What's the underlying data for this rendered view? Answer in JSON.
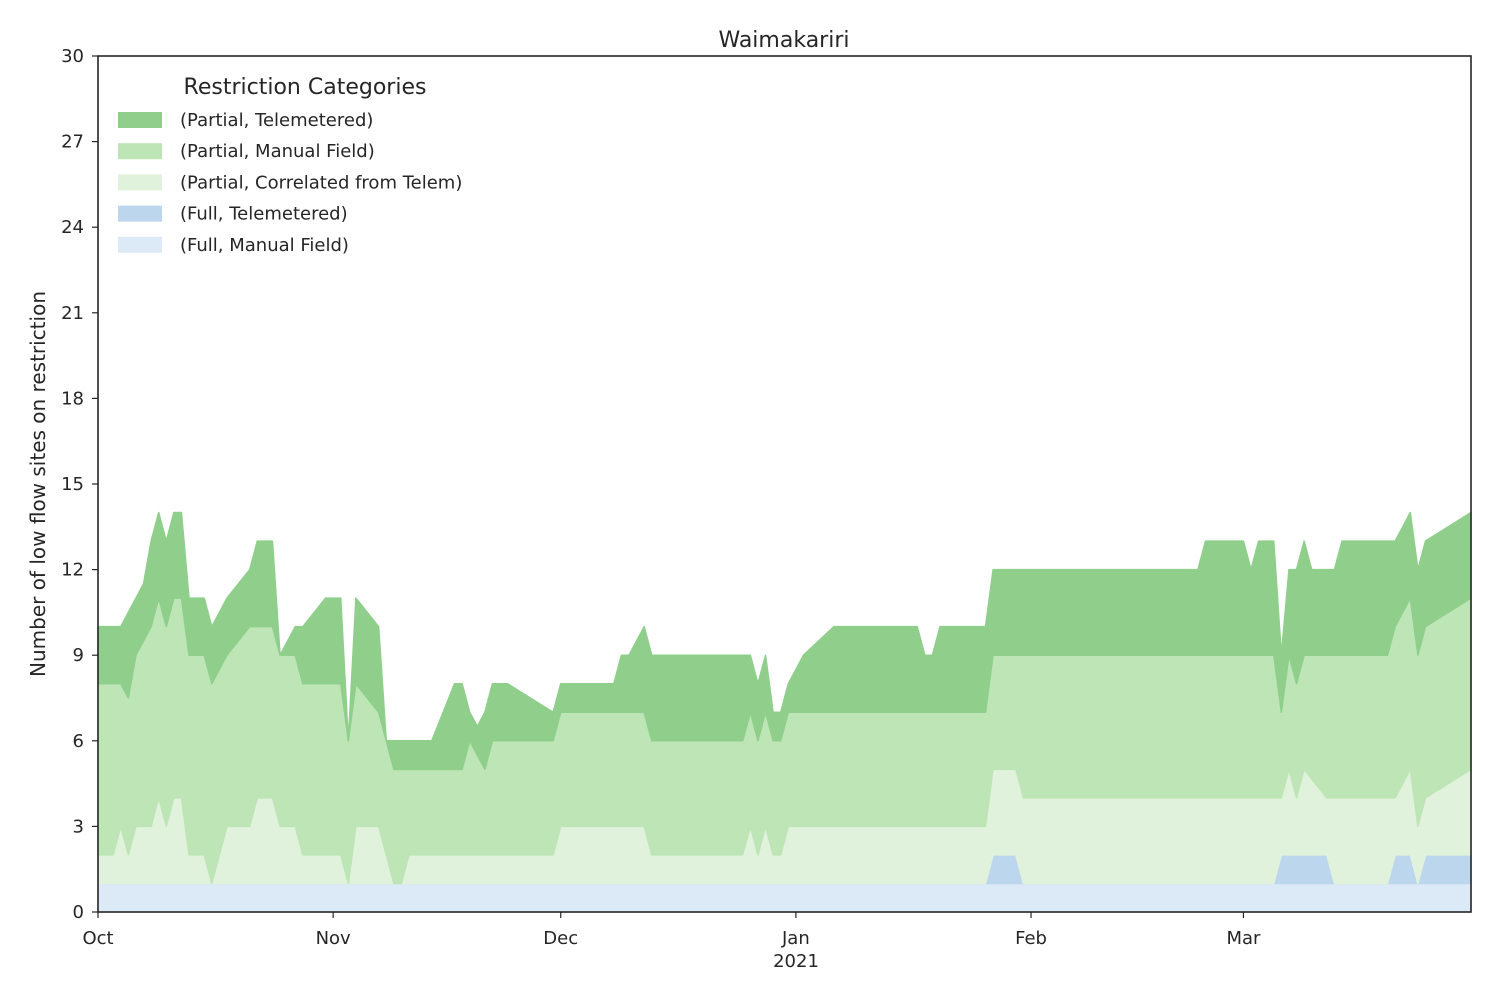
{
  "chart_data": {
    "type": "area",
    "stacked": true,
    "title": "Waimakariri",
    "xlabel": "",
    "ylabel": "Number of low flow sites on restriction",
    "ylim": [
      0,
      30
    ],
    "yticks": [
      0,
      3,
      6,
      9,
      12,
      15,
      18,
      21,
      24,
      27,
      30
    ],
    "xlim": [
      "2020-10-01",
      "2021-03-31"
    ],
    "xticks": [
      {
        "label": "Oct",
        "date": "2020-10-01"
      },
      {
        "label": "Nov",
        "date": "2020-11-01"
      },
      {
        "label": "Dec",
        "date": "2020-12-01"
      },
      {
        "label": "Jan",
        "date": "2021-01-01"
      },
      {
        "label": "Feb",
        "date": "2021-02-01"
      },
      {
        "label": "Mar",
        "date": "2021-03-01"
      }
    ],
    "year_label": "2021",
    "grid": false,
    "legend": {
      "title": "Restriction Categories",
      "placement": "top-left"
    },
    "series": [
      {
        "name": "(Full, Manual Field)",
        "color": "#dce9f6",
        "points": [
          [
            "2020-10-01",
            1
          ],
          [
            "2021-03-31",
            1
          ]
        ]
      },
      {
        "name": "(Full, Telemetered)",
        "color": "#bcd7ed",
        "points": [
          [
            "2020-10-01",
            0
          ],
          [
            "2021-01-26",
            0
          ],
          [
            "2021-01-27",
            1
          ],
          [
            "2021-01-30",
            1
          ],
          [
            "2021-01-31",
            0
          ],
          [
            "2021-03-05",
            0
          ],
          [
            "2021-03-06",
            1
          ],
          [
            "2021-03-12",
            1
          ],
          [
            "2021-03-13",
            0
          ],
          [
            "2021-03-20",
            0
          ],
          [
            "2021-03-21",
            1
          ],
          [
            "2021-03-23",
            1
          ],
          [
            "2021-03-24",
            0
          ],
          [
            "2021-03-25",
            1
          ],
          [
            "2021-03-31",
            1
          ]
        ]
      },
      {
        "name": "(Partial, Correlated from Telem)",
        "color": "#e1f2dc",
        "points": [
          [
            "2020-10-01",
            1
          ],
          [
            "2020-10-03",
            1
          ],
          [
            "2020-10-04",
            2
          ],
          [
            "2020-10-05",
            1
          ],
          [
            "2020-10-06",
            2
          ],
          [
            "2020-10-08",
            2
          ],
          [
            "2020-10-09",
            3
          ],
          [
            "2020-10-10",
            2
          ],
          [
            "2020-10-11",
            3
          ],
          [
            "2020-10-12",
            3
          ],
          [
            "2020-10-13",
            1
          ],
          [
            "2020-10-15",
            1
          ],
          [
            "2020-10-16",
            0
          ],
          [
            "2020-10-18",
            2
          ],
          [
            "2020-10-21",
            2
          ],
          [
            "2020-10-22",
            3
          ],
          [
            "2020-10-24",
            3
          ],
          [
            "2020-10-25",
            2
          ],
          [
            "2020-10-27",
            2
          ],
          [
            "2020-10-28",
            1
          ],
          [
            "2020-11-02",
            1
          ],
          [
            "2020-11-03",
            0
          ],
          [
            "2020-11-04",
            2
          ],
          [
            "2020-11-07",
            2
          ],
          [
            "2020-11-09",
            0
          ],
          [
            "2020-11-10",
            0
          ],
          [
            "2020-11-11",
            1
          ],
          [
            "2020-11-30",
            1
          ],
          [
            "2020-12-01",
            2
          ],
          [
            "2020-12-12",
            2
          ],
          [
            "2020-12-13",
            1
          ],
          [
            "2020-12-25",
            1
          ],
          [
            "2020-12-26",
            2
          ],
          [
            "2020-12-27",
            1
          ],
          [
            "2020-12-28",
            2
          ],
          [
            "2020-12-29",
            1
          ],
          [
            "2020-12-30",
            1
          ],
          [
            "2020-12-31",
            2
          ],
          [
            "2021-01-26",
            2
          ],
          [
            "2021-01-27",
            3
          ],
          [
            "2021-01-30",
            3
          ],
          [
            "2021-01-31",
            3
          ],
          [
            "2021-03-05",
            3
          ],
          [
            "2021-03-06",
            2
          ],
          [
            "2021-03-07",
            3
          ],
          [
            "2021-03-08",
            2
          ],
          [
            "2021-03-09",
            3
          ],
          [
            "2021-03-12",
            2
          ],
          [
            "2021-03-13",
            3
          ],
          [
            "2021-03-20",
            3
          ],
          [
            "2021-03-21",
            2
          ],
          [
            "2021-03-23",
            3
          ],
          [
            "2021-03-24",
            2
          ],
          [
            "2021-03-25",
            2
          ],
          [
            "2021-03-31",
            3
          ]
        ]
      },
      {
        "name": "(Partial, Manual Field)",
        "color": "#bde5b5",
        "points": [
          [
            "2020-10-01",
            6
          ],
          [
            "2020-10-03",
            6
          ],
          [
            "2020-10-04",
            5
          ],
          [
            "2020-10-08",
            7
          ],
          [
            "2020-10-09",
            7
          ],
          [
            "2020-10-10",
            7
          ],
          [
            "2020-10-11",
            7
          ],
          [
            "2020-10-12",
            7
          ],
          [
            "2020-10-13",
            7
          ],
          [
            "2020-10-15",
            7
          ],
          [
            "2020-10-16",
            7
          ],
          [
            "2020-10-18",
            6
          ],
          [
            "2020-10-21",
            7
          ],
          [
            "2020-10-22",
            6
          ],
          [
            "2020-10-24",
            6
          ],
          [
            "2020-10-25",
            6
          ],
          [
            "2020-10-27",
            6
          ],
          [
            "2020-10-28",
            6
          ],
          [
            "2020-11-02",
            6
          ],
          [
            "2020-11-03",
            5
          ],
          [
            "2020-11-04",
            5
          ],
          [
            "2020-11-07",
            4
          ],
          [
            "2020-11-09",
            4
          ],
          [
            "2020-11-10",
            4
          ],
          [
            "2020-11-11",
            3
          ],
          [
            "2020-11-18",
            3
          ],
          [
            "2020-11-19",
            4
          ],
          [
            "2020-11-21",
            3
          ],
          [
            "2020-11-22",
            4
          ],
          [
            "2020-11-30",
            4
          ],
          [
            "2020-12-01",
            4
          ],
          [
            "2020-12-12",
            4
          ],
          [
            "2020-12-13",
            4
          ],
          [
            "2020-12-25",
            4
          ],
          [
            "2020-12-31",
            4
          ],
          [
            "2021-01-26",
            4
          ],
          [
            "2021-01-27",
            4
          ],
          [
            "2021-01-30",
            4
          ],
          [
            "2021-01-31",
            5
          ],
          [
            "2021-03-05",
            5
          ],
          [
            "2021-03-06",
            3
          ],
          [
            "2021-03-07",
            4
          ],
          [
            "2021-03-08",
            4
          ],
          [
            "2021-03-09",
            4
          ],
          [
            "2021-03-12",
            5
          ],
          [
            "2021-03-13",
            5
          ],
          [
            "2021-03-20",
            5
          ],
          [
            "2021-03-21",
            6
          ],
          [
            "2021-03-23",
            6
          ],
          [
            "2021-03-24",
            6
          ],
          [
            "2021-03-25",
            6
          ],
          [
            "2021-03-31",
            6
          ]
        ]
      },
      {
        "name": "(Partial, Telemetered)",
        "color": "#8fcf8b",
        "points": [
          [
            "2020-10-01",
            2
          ],
          [
            "2020-10-04",
            2
          ],
          [
            "2020-10-05",
            3
          ],
          [
            "2020-10-06",
            2
          ],
          [
            "2020-10-07",
            2
          ],
          [
            "2020-10-08",
            3
          ],
          [
            "2020-10-09",
            3
          ],
          [
            "2020-10-10",
            3
          ],
          [
            "2020-10-11",
            3
          ],
          [
            "2020-10-12",
            3
          ],
          [
            "2020-10-13",
            2
          ],
          [
            "2020-10-15",
            2
          ],
          [
            "2020-10-16",
            2
          ],
          [
            "2020-10-18",
            2
          ],
          [
            "2020-10-19",
            2
          ],
          [
            "2020-10-20",
            2
          ],
          [
            "2020-10-21",
            2
          ],
          [
            "2020-10-22",
            3
          ],
          [
            "2020-10-24",
            3
          ],
          [
            "2020-10-25",
            0
          ],
          [
            "2020-10-27",
            1
          ],
          [
            "2020-10-28",
            2
          ],
          [
            "2020-10-31",
            3
          ],
          [
            "2020-11-01",
            3
          ],
          [
            "2020-11-02",
            3
          ],
          [
            "2020-11-03",
            0
          ],
          [
            "2020-11-04",
            3
          ],
          [
            "2020-11-07",
            3
          ],
          [
            "2020-11-08",
            0
          ],
          [
            "2020-11-09",
            1
          ],
          [
            "2020-11-10",
            1
          ],
          [
            "2020-11-11",
            1
          ],
          [
            "2020-11-14",
            1
          ],
          [
            "2020-11-17",
            3
          ],
          [
            "2020-11-18",
            3
          ],
          [
            "2020-11-19",
            1
          ],
          [
            "2020-11-20",
            1
          ],
          [
            "2020-11-21",
            2
          ],
          [
            "2020-11-22",
            2
          ],
          [
            "2020-11-24",
            2
          ],
          [
            "2020-11-30",
            1
          ],
          [
            "2020-12-01",
            1
          ],
          [
            "2020-12-08",
            1
          ],
          [
            "2020-12-09",
            2
          ],
          [
            "2020-12-10",
            2
          ],
          [
            "2020-12-12",
            3
          ],
          [
            "2020-12-25",
            3
          ],
          [
            "2020-12-26",
            2
          ],
          [
            "2020-12-28",
            2
          ],
          [
            "2020-12-29",
            1
          ],
          [
            "2020-12-31",
            1
          ],
          [
            "2021-01-02",
            2
          ],
          [
            "2021-01-06",
            3
          ],
          [
            "2021-01-07",
            3
          ],
          [
            "2021-01-09",
            3
          ],
          [
            "2021-01-10",
            3
          ],
          [
            "2021-01-12",
            3
          ],
          [
            "2021-01-14",
            3
          ],
          [
            "2021-01-17",
            3
          ],
          [
            "2021-01-18",
            2
          ],
          [
            "2021-01-19",
            2
          ],
          [
            "2021-01-20",
            3
          ],
          [
            "2021-01-26",
            3
          ],
          [
            "2021-01-27",
            3
          ],
          [
            "2021-01-30",
            3
          ],
          [
            "2021-01-31",
            3
          ],
          [
            "2021-02-23",
            3
          ],
          [
            "2021-02-24",
            4
          ],
          [
            "2021-03-01",
            4
          ],
          [
            "2021-03-02",
            3
          ],
          [
            "2021-03-03",
            4
          ],
          [
            "2021-03-05",
            4
          ],
          [
            "2021-03-06",
            2
          ],
          [
            "2021-03-07",
            3
          ],
          [
            "2021-03-08",
            4
          ],
          [
            "2021-03-09",
            4
          ],
          [
            "2021-03-10",
            3
          ],
          [
            "2021-03-11",
            3
          ],
          [
            "2021-03-12",
            3
          ],
          [
            "2021-03-13",
            3
          ],
          [
            "2021-03-14",
            4
          ],
          [
            "2021-03-20",
            4
          ],
          [
            "2021-03-21",
            3
          ],
          [
            "2021-03-23",
            3
          ],
          [
            "2021-03-24",
            3
          ],
          [
            "2021-03-25",
            3
          ],
          [
            "2021-03-31",
            3
          ]
        ]
      }
    ]
  }
}
